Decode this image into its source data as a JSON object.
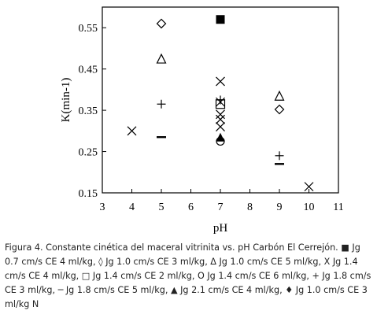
{
  "chart_data": {
    "type": "scatter",
    "title": "",
    "xlabel": "pH",
    "ylabel": "K(min-1)",
    "xlim": [
      3,
      11
    ],
    "ylim": [
      0.15,
      0.6
    ],
    "x_ticks": [
      "3",
      "4",
      "5",
      "6",
      "7",
      "8",
      "9",
      "10",
      "11"
    ],
    "y_ticks": [
      "0.15",
      "0.25",
      "0.35",
      "0.45",
      "0.55"
    ],
    "grid": false,
    "legend": "none",
    "series": [
      {
        "marker": "filled-square",
        "points": [
          [
            7,
            0.57
          ]
        ]
      },
      {
        "marker": "open-diamond",
        "points": [
          [
            5,
            0.56
          ],
          [
            9,
            0.352
          ]
        ]
      },
      {
        "marker": "open-triangle",
        "points": [
          [
            5,
            0.475
          ],
          [
            9,
            0.385
          ]
        ]
      },
      {
        "marker": "x",
        "points": [
          [
            4,
            0.3
          ],
          [
            7,
            0.42
          ],
          [
            7,
            0.37
          ],
          [
            7,
            0.34
          ],
          [
            7,
            0.328
          ],
          [
            7,
            0.31
          ],
          [
            10,
            0.165
          ]
        ]
      },
      {
        "marker": "open-square",
        "points": [
          [
            7,
            0.365
          ]
        ]
      },
      {
        "marker": "open-circle",
        "points": [
          [
            7,
            0.275
          ]
        ]
      },
      {
        "marker": "plus",
        "points": [
          [
            5,
            0.365
          ],
          [
            7,
            0.375
          ],
          [
            9,
            0.24
          ]
        ]
      },
      {
        "marker": "dash",
        "points": [
          [
            5,
            0.285
          ],
          [
            9,
            0.22
          ]
        ]
      },
      {
        "marker": "filled-triangle",
        "points": [
          [
            7,
            0.285
          ]
        ]
      }
    ]
  },
  "caption": {
    "text": "Figura 4. Constante cinética del maceral vitrinita vs. pH Carbón El Cerrejón. ■ Jg 0.7 cm/s CE 4 ml/kg, ◊ Jg 1.0 cm/s CE 3 ml/kg, Δ Jg 1.0 cm/s CE 5 ml/kg, X Jg 1.4 cm/s CE 4 ml/kg, □ Jg 1.4 cm/s CE 2 ml/kg, O Jg 1.4 cm/s CE 6 ml/kg, + Jg 1.8 cm/s CE 3 ml/kg, ─ Jg 1.8 cm/s CE 5 ml/kg, ▲ Jg 2.1 cm/s CE 4 ml/kg, ♦ Jg 1.0 cm/s CE 3 ml/kg N"
  }
}
